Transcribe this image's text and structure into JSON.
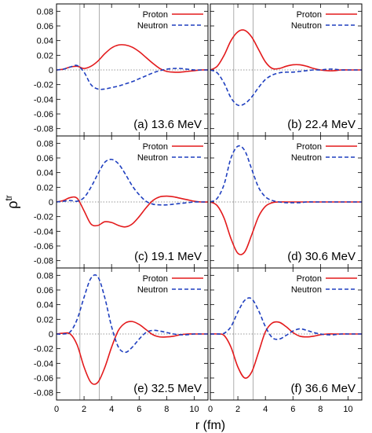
{
  "figure": {
    "y_axis_label_base": "ρ",
    "y_axis_label_sup": "tr",
    "x_axis_label": "r (fm)",
    "legend_labels": [
      "Proton",
      "Neutron"
    ],
    "colors": {
      "proton": "#e31a1c",
      "neutron": "#1f3fbf",
      "guide_lines": "#999999",
      "zero_line": "#777777"
    }
  },
  "chart_data": [
    {
      "type": "line",
      "panel": "a",
      "annotation": "(a) 13.6 MeV",
      "x_ticks": [],
      "legend": "top-right",
      "xlim": [
        0,
        11
      ],
      "ylim": [
        -0.09,
        0.09
      ],
      "y_ticks": [
        "0.08",
        "0.06",
        "0.04",
        "0.02",
        "0",
        "-0.02",
        "-0.04",
        "-0.06",
        "-0.08"
      ],
      "vertical_guides": [
        1.7,
        3.1
      ],
      "x": [
        0,
        0.5,
        1,
        1.5,
        2,
        2.5,
        3,
        3.5,
        4,
        4.5,
        5,
        5.5,
        6,
        6.5,
        7,
        7.5,
        8,
        8.5,
        9,
        9.5,
        10,
        10.5,
        11
      ],
      "series": [
        {
          "name": "Proton",
          "style": "solid",
          "values": [
            0,
            0.001,
            0.004,
            0.005,
            0.002,
            0.005,
            0.012,
            0.022,
            0.03,
            0.034,
            0.034,
            0.031,
            0.025,
            0.017,
            0.009,
            0.002,
            -0.002,
            -0.003,
            -0.003,
            -0.002,
            -0.001,
            0,
            0
          ]
        },
        {
          "name": "Neutron",
          "style": "dashed",
          "values": [
            0,
            0.001,
            0.004,
            0.006,
            -0.003,
            -0.02,
            -0.026,
            -0.026,
            -0.024,
            -0.022,
            -0.019,
            -0.016,
            -0.012,
            -0.008,
            -0.004,
            -0.001,
            0.001,
            0.002,
            0.002,
            0.001,
            0,
            0,
            0
          ]
        }
      ]
    },
    {
      "type": "line",
      "panel": "b",
      "annotation": "(b) 22.4 MeV",
      "x_ticks": [],
      "legend": "top-right",
      "xlim": [
        0,
        11
      ],
      "ylim": [
        -0.09,
        0.09
      ],
      "y_ticks": [],
      "vertical_guides": [
        1.7,
        3.1
      ],
      "x": [
        0,
        0.5,
        1,
        1.5,
        2,
        2.5,
        3,
        3.5,
        4,
        4.5,
        5,
        5.5,
        6,
        6.5,
        7,
        7.5,
        8,
        8.5,
        9,
        9.5,
        10,
        10.5,
        11
      ],
      "series": [
        {
          "name": "Proton",
          "style": "solid",
          "values": [
            0,
            0.005,
            0.02,
            0.04,
            0.052,
            0.054,
            0.045,
            0.028,
            0.011,
            0.002,
            0.002,
            0.005,
            0.007,
            0.007,
            0.005,
            0.002,
            0,
            -0.001,
            -0.001,
            0,
            0,
            0,
            0
          ]
        },
        {
          "name": "Neutron",
          "style": "dashed",
          "values": [
            0,
            -0.004,
            -0.018,
            -0.038,
            -0.048,
            -0.046,
            -0.037,
            -0.024,
            -0.013,
            -0.007,
            -0.004,
            -0.003,
            -0.003,
            -0.002,
            -0.001,
            0,
            0,
            0.001,
            0.001,
            0,
            0,
            0,
            0
          ]
        }
      ]
    },
    {
      "type": "line",
      "panel": "c",
      "annotation": "(c) 19.1 MeV",
      "x_ticks": [],
      "legend": "top-right",
      "xlim": [
        0,
        11
      ],
      "ylim": [
        -0.09,
        0.09
      ],
      "y_ticks": [
        "0.08",
        "0.06",
        "0.04",
        "0.02",
        "0",
        "-0.02",
        "-0.04",
        "-0.06",
        "-0.08"
      ],
      "vertical_guides": [
        1.7,
        3.1
      ],
      "x": [
        0,
        0.5,
        1,
        1.5,
        2,
        2.5,
        3,
        3.5,
        4,
        4.5,
        5,
        5.5,
        6,
        6.5,
        7,
        7.5,
        8,
        8.5,
        9,
        9.5,
        10,
        10.5,
        11
      ],
      "series": [
        {
          "name": "Proton",
          "style": "solid",
          "values": [
            0,
            0.002,
            0.006,
            0.005,
            -0.012,
            -0.03,
            -0.032,
            -0.027,
            -0.028,
            -0.032,
            -0.034,
            -0.03,
            -0.02,
            -0.008,
            0.002,
            0.007,
            0.008,
            0.007,
            0.005,
            0.003,
            0.001,
            0,
            0
          ]
        },
        {
          "name": "Neutron",
          "style": "dashed",
          "values": [
            0,
            0.001,
            0.002,
            0.001,
            0.006,
            0.02,
            0.038,
            0.054,
            0.058,
            0.052,
            0.038,
            0.022,
            0.01,
            0.001,
            -0.003,
            -0.004,
            -0.004,
            -0.003,
            -0.002,
            -0.001,
            0,
            0,
            0
          ]
        }
      ]
    },
    {
      "type": "line",
      "panel": "d",
      "annotation": "(d) 30.6 MeV",
      "x_ticks": [],
      "legend": "top-right",
      "xlim": [
        0,
        11
      ],
      "ylim": [
        -0.09,
        0.09
      ],
      "y_ticks": [],
      "vertical_guides": [
        1.7,
        3.1
      ],
      "x": [
        0,
        0.5,
        1,
        1.5,
        2,
        2.5,
        3,
        3.5,
        4,
        4.5,
        5,
        5.5,
        6,
        6.5,
        7,
        7.5,
        8,
        8.5,
        9,
        9.5,
        10,
        10.5,
        11
      ],
      "series": [
        {
          "name": "Proton",
          "style": "solid",
          "values": [
            0,
            -0.005,
            -0.022,
            -0.05,
            -0.07,
            -0.068,
            -0.045,
            -0.02,
            -0.006,
            -0.001,
            0,
            0,
            0,
            0,
            0,
            0,
            0,
            0,
            0,
            0,
            0,
            0,
            0
          ]
        },
        {
          "name": "Neutron",
          "style": "dashed",
          "values": [
            0,
            0.005,
            0.024,
            0.06,
            0.076,
            0.07,
            0.045,
            0.02,
            0.007,
            0.002,
            0,
            -0.001,
            -0.001,
            -0.001,
            0,
            0,
            0,
            0,
            0,
            0,
            0,
            0,
            0
          ]
        }
      ]
    },
    {
      "type": "line",
      "panel": "e",
      "annotation": "(e) 32.5 MeV",
      "x_ticks": [
        "0",
        "2",
        "4",
        "6",
        "8",
        "10"
      ],
      "legend": "top-right",
      "xlim": [
        0,
        11
      ],
      "ylim": [
        -0.09,
        0.09
      ],
      "y_ticks": [
        "0.08",
        "0.06",
        "0.04",
        "0.02",
        "0",
        "-0.02",
        "-0.04",
        "-0.06",
        "-0.08"
      ],
      "vertical_guides": [
        1.7,
        3.1
      ],
      "x": [
        0,
        0.5,
        1,
        1.5,
        2,
        2.5,
        3,
        3.5,
        4,
        4.5,
        5,
        5.5,
        6,
        6.5,
        7,
        7.5,
        8,
        8.5,
        9,
        9.5,
        10,
        10.5,
        11
      ],
      "series": [
        {
          "name": "Proton",
          "style": "solid",
          "values": [
            0,
            0.001,
            0,
            -0.015,
            -0.045,
            -0.066,
            -0.066,
            -0.046,
            -0.018,
            0.005,
            0.015,
            0.017,
            0.013,
            0.006,
            -0.001,
            -0.004,
            -0.004,
            -0.003,
            -0.001,
            0,
            0,
            0,
            0
          ]
        },
        {
          "name": "Neutron",
          "style": "dashed",
          "values": [
            0,
            0,
            0.003,
            0.02,
            0.05,
            0.076,
            0.078,
            0.05,
            0.01,
            -0.018,
            -0.025,
            -0.018,
            -0.007,
            0.002,
            0.005,
            0.004,
            0.002,
            0,
            -0.001,
            -0.001,
            0,
            0,
            0
          ]
        }
      ]
    },
    {
      "type": "line",
      "panel": "f",
      "annotation": "(f) 36.6 MeV",
      "x_ticks": [
        "0",
        "2",
        "4",
        "6",
        "8",
        "10"
      ],
      "legend": "top-right",
      "xlim": [
        0,
        11
      ],
      "ylim": [
        -0.09,
        0.09
      ],
      "y_ticks": [],
      "vertical_guides": [
        1.7,
        3.1
      ],
      "x": [
        0,
        0.5,
        1,
        1.5,
        2,
        2.5,
        3,
        3.5,
        4,
        4.5,
        5,
        5.5,
        6,
        6.5,
        7,
        7.5,
        8,
        8.5,
        9,
        9.5,
        10,
        10.5,
        11
      ],
      "series": [
        {
          "name": "Proton",
          "style": "solid",
          "values": [
            0,
            0,
            -0.002,
            -0.018,
            -0.045,
            -0.06,
            -0.052,
            -0.025,
            0.003,
            0.015,
            0.016,
            0.01,
            0.002,
            -0.003,
            -0.004,
            -0.003,
            -0.001,
            0,
            0,
            0,
            0,
            0,
            0
          ]
        },
        {
          "name": "Neutron",
          "style": "dashed",
          "values": [
            0,
            0,
            0.001,
            0.01,
            0.03,
            0.046,
            0.048,
            0.032,
            0.01,
            -0.005,
            -0.007,
            -0.002,
            0.004,
            0.007,
            0.005,
            0.002,
            0,
            -0.001,
            -0.001,
            0,
            0,
            0,
            0
          ]
        }
      ]
    }
  ]
}
